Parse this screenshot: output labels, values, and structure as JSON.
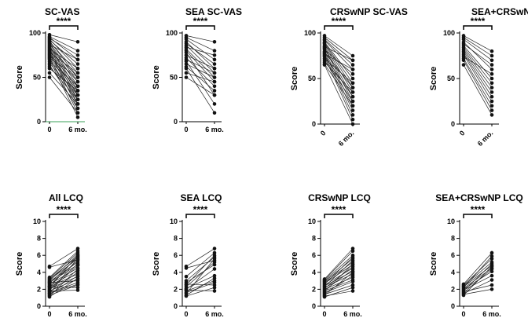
{
  "figure": {
    "description_label": "Paired score changes from baseline to 6 months"
  },
  "chart_data": [
    {
      "type": "scatter",
      "title": "SC-VAS",
      "ylabel": "Score",
      "categories": [
        "0",
        "6 mo."
      ],
      "ylim": [
        0,
        100
      ],
      "yticks": [
        0,
        50,
        100
      ],
      "significance": "****",
      "rotate_xlabels": false,
      "pairs": [
        [
          98,
          90
        ],
        [
          96,
          80
        ],
        [
          95,
          70
        ],
        [
          94,
          75
        ],
        [
          93,
          60
        ],
        [
          92,
          65
        ],
        [
          91,
          50
        ],
        [
          90,
          55
        ],
        [
          89,
          45
        ],
        [
          88,
          40
        ],
        [
          87,
          70
        ],
        [
          86,
          35
        ],
        [
          85,
          30
        ],
        [
          84,
          50
        ],
        [
          83,
          25
        ],
        [
          82,
          60
        ],
        [
          81,
          20
        ],
        [
          80,
          45
        ],
        [
          79,
          15
        ],
        [
          78,
          55
        ],
        [
          77,
          40
        ],
        [
          76,
          30
        ],
        [
          75,
          35
        ],
        [
          74,
          25
        ],
        [
          73,
          10
        ],
        [
          72,
          50
        ],
        [
          71,
          20
        ],
        [
          70,
          5
        ],
        [
          68,
          40
        ],
        [
          66,
          30
        ],
        [
          64,
          15
        ],
        [
          62,
          25
        ],
        [
          60,
          35
        ],
        [
          55,
          20
        ],
        [
          50,
          10
        ]
      ]
    },
    {
      "type": "scatter",
      "title": "SEA SC-VAS",
      "ylabel": "Score",
      "categories": [
        "0",
        "6 mo."
      ],
      "ylim": [
        0,
        100
      ],
      "yticks": [
        0,
        50,
        100
      ],
      "significance": "****",
      "rotate_xlabels": false,
      "pairs": [
        [
          97,
          90
        ],
        [
          95,
          80
        ],
        [
          93,
          70
        ],
        [
          90,
          60
        ],
        [
          88,
          65
        ],
        [
          86,
          55
        ],
        [
          84,
          75
        ],
        [
          82,
          50
        ],
        [
          80,
          45
        ],
        [
          78,
          30
        ],
        [
          75,
          60
        ],
        [
          72,
          40
        ],
        [
          70,
          55
        ],
        [
          68,
          20
        ],
        [
          65,
          50
        ],
        [
          62,
          35
        ],
        [
          60,
          10
        ],
        [
          55,
          45
        ],
        [
          50,
          30
        ]
      ]
    },
    {
      "type": "scatter",
      "title": "CRSwNP SC-VAS",
      "ylabel": "Score",
      "categories": [
        "0",
        "6 mo."
      ],
      "ylim": [
        0,
        100
      ],
      "yticks": [
        0,
        50,
        100
      ],
      "significance": "****",
      "rotate_xlabels": true,
      "pairs": [
        [
          97,
          75
        ],
        [
          95,
          70
        ],
        [
          93,
          65
        ],
        [
          92,
          60
        ],
        [
          90,
          50
        ],
        [
          89,
          45
        ],
        [
          88,
          40
        ],
        [
          86,
          35
        ],
        [
          85,
          70
        ],
        [
          84,
          30
        ],
        [
          83,
          25
        ],
        [
          82,
          55
        ],
        [
          80,
          20
        ],
        [
          79,
          40
        ],
        [
          78,
          15
        ],
        [
          77,
          60
        ],
        [
          76,
          10
        ],
        [
          75,
          30
        ],
        [
          74,
          5
        ],
        [
          72,
          45
        ],
        [
          70,
          25
        ],
        [
          68,
          35
        ],
        [
          66,
          20
        ],
        [
          65,
          0
        ]
      ]
    },
    {
      "type": "scatter",
      "title": "SEA+CRSwNP SC-VAS",
      "ylabel": "Score",
      "categories": [
        "0",
        "6 mo."
      ],
      "ylim": [
        0,
        100
      ],
      "yticks": [
        0,
        50,
        100
      ],
      "significance": "****",
      "rotate_xlabels": true,
      "pairs": [
        [
          97,
          80
        ],
        [
          95,
          75
        ],
        [
          93,
          70
        ],
        [
          90,
          60
        ],
        [
          88,
          65
        ],
        [
          86,
          50
        ],
        [
          84,
          45
        ],
        [
          82,
          40
        ],
        [
          80,
          35
        ],
        [
          78,
          30
        ],
        [
          76,
          25
        ],
        [
          74,
          55
        ],
        [
          72,
          20
        ],
        [
          70,
          15
        ],
        [
          65,
          10
        ]
      ]
    },
    {
      "type": "scatter",
      "title": "All LCQ",
      "ylabel": "Score",
      "categories": [
        "0",
        "6 mo."
      ],
      "ylim": [
        0,
        10
      ],
      "yticks": [
        0,
        2,
        4,
        6,
        8,
        10
      ],
      "significance": "****",
      "rotate_xlabels": false,
      "pairs": [
        [
          4.7,
          6.8
        ],
        [
          4.6,
          5.5
        ],
        [
          3.4,
          6.5
        ],
        [
          3.3,
          6.3
        ],
        [
          3.2,
          5.9
        ],
        [
          3.1,
          5.6
        ],
        [
          3.0,
          6.1
        ],
        [
          2.9,
          5.2
        ],
        [
          2.8,
          4.9
        ],
        [
          2.7,
          5.8
        ],
        [
          2.6,
          4.5
        ],
        [
          2.5,
          5.4
        ],
        [
          2.4,
          4.2
        ],
        [
          2.3,
          3.8
        ],
        [
          2.2,
          6.0
        ],
        [
          2.1,
          3.5
        ],
        [
          2.0,
          5.0
        ],
        [
          1.9,
          4.8
        ],
        [
          1.8,
          3.2
        ],
        [
          1.7,
          4.0
        ],
        [
          1.6,
          2.8
        ],
        [
          1.5,
          5.7
        ],
        [
          1.4,
          3.6
        ],
        [
          1.3,
          2.5
        ],
        [
          1.2,
          4.4
        ],
        [
          2.8,
          3.0
        ],
        [
          2.3,
          2.2
        ],
        [
          1.8,
          1.9
        ],
        [
          1.5,
          2.6
        ],
        [
          1.1,
          3.3
        ]
      ]
    },
    {
      "type": "scatter",
      "title": "SEA LCQ",
      "ylabel": "Score",
      "categories": [
        "0",
        "6 mo."
      ],
      "ylim": [
        0,
        10
      ],
      "yticks": [
        0,
        2,
        4,
        6,
        8,
        10
      ],
      "significance": "****",
      "rotate_xlabels": false,
      "pairs": [
        [
          4.7,
          6.8
        ],
        [
          4.5,
          5.4
        ],
        [
          3.5,
          6.3
        ],
        [
          3.0,
          5.8
        ],
        [
          2.8,
          4.9
        ],
        [
          2.5,
          6.0
        ],
        [
          2.3,
          5.2
        ],
        [
          2.1,
          3.6
        ],
        [
          2.0,
          4.4
        ],
        [
          1.8,
          3.0
        ],
        [
          1.6,
          2.8
        ],
        [
          1.5,
          5.6
        ],
        [
          1.3,
          3.3
        ],
        [
          1.2,
          2.2
        ],
        [
          2.6,
          2.5
        ],
        [
          1.9,
          1.8
        ]
      ]
    },
    {
      "type": "scatter",
      "title": "CRSwNP LCQ",
      "ylabel": "Score",
      "categories": [
        "0",
        "6 mo."
      ],
      "ylim": [
        0,
        10
      ],
      "yticks": [
        0,
        2,
        4,
        6,
        8,
        10
      ],
      "significance": "****",
      "rotate_xlabels": false,
      "pairs": [
        [
          3.2,
          6.8
        ],
        [
          3.1,
          6.5
        ],
        [
          3.0,
          6.0
        ],
        [
          2.9,
          5.6
        ],
        [
          2.8,
          5.2
        ],
        [
          2.7,
          4.9
        ],
        [
          2.6,
          5.8
        ],
        [
          2.5,
          4.5
        ],
        [
          2.4,
          4.1
        ],
        [
          2.3,
          5.4
        ],
        [
          2.2,
          3.8
        ],
        [
          2.1,
          4.7
        ],
        [
          2.0,
          3.4
        ],
        [
          1.9,
          4.3
        ],
        [
          1.8,
          3.1
        ],
        [
          1.7,
          5.0
        ],
        [
          1.6,
          2.9
        ],
        [
          1.5,
          3.6
        ],
        [
          1.4,
          2.5
        ],
        [
          1.3,
          4.0
        ],
        [
          1.2,
          1.8
        ],
        [
          1.1,
          2.2
        ]
      ]
    },
    {
      "type": "scatter",
      "title": "SEA+CRSwNP LCQ",
      "ylabel": "Score",
      "categories": [
        "0",
        "6 mo."
      ],
      "ylim": [
        0,
        10
      ],
      "yticks": [
        0,
        2,
        4,
        6,
        8,
        10
      ],
      "significance": "****",
      "rotate_xlabels": false,
      "pairs": [
        [
          2.6,
          6.3
        ],
        [
          2.5,
          5.6
        ],
        [
          2.4,
          5.2
        ],
        [
          2.3,
          4.8
        ],
        [
          2.2,
          5.9
        ],
        [
          2.1,
          4.5
        ],
        [
          2.0,
          4.1
        ],
        [
          1.9,
          3.6
        ],
        [
          1.8,
          5.0
        ],
        [
          1.7,
          2.5
        ],
        [
          1.6,
          4.4
        ],
        [
          1.5,
          3.1
        ],
        [
          1.4,
          2.0
        ],
        [
          1.3,
          4.7
        ]
      ]
    }
  ]
}
